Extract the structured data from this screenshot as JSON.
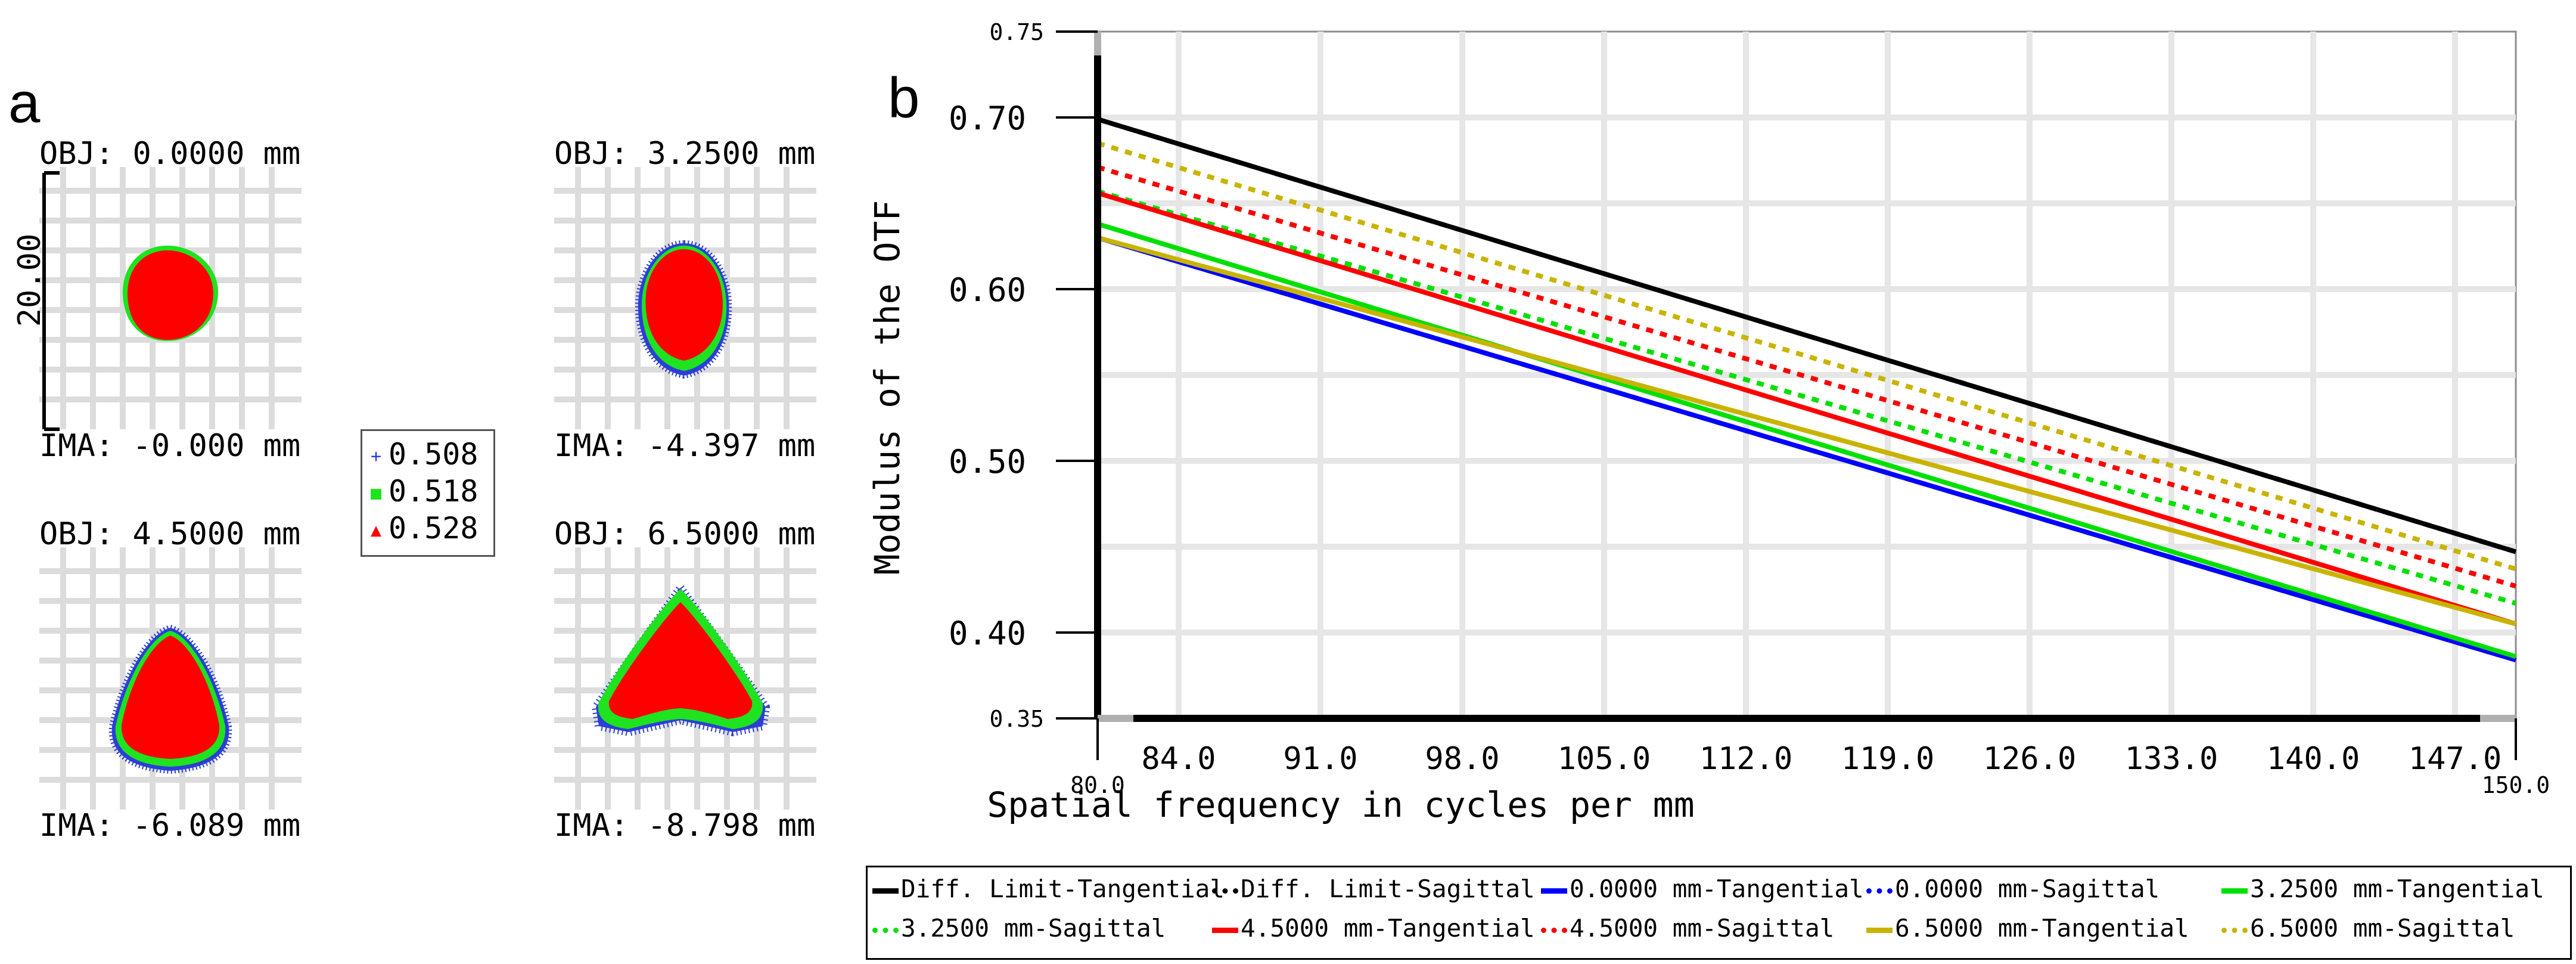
{
  "spot_panel": {
    "letter": "a",
    "fields": [
      {
        "obj": "OBJ: 0.0000 mm",
        "ima": "IMA: -0.000 mm"
      },
      {
        "obj": "OBJ: 3.2500 mm",
        "ima": "IMA: -4.397 mm"
      },
      {
        "obj": "OBJ: 4.5000 mm",
        "ima": "IMA: -6.089 mm"
      },
      {
        "obj": "OBJ: 6.5000 mm",
        "ima": "IMA: -8.798 mm"
      }
    ],
    "scale_label": "20.00",
    "wavelengths": [
      {
        "label": "0.508",
        "marker": "+",
        "color": "#2b3fd6"
      },
      {
        "label": "0.518",
        "marker": "■",
        "color": "#1ee31e"
      },
      {
        "label": "0.528",
        "marker": "▲",
        "color": "#ff0000"
      }
    ]
  },
  "chart_data": {
    "type": "line",
    "panel_letter": "b",
    "title": "",
    "xlabel": "Spatial frequency in cycles per mm",
    "ylabel": "Modulus of the OTF",
    "xlim": [
      80.0,
      150.0
    ],
    "ylim": [
      0.35,
      0.75
    ],
    "x_ticks": [
      "84.0",
      "91.0",
      "98.0",
      "105.0",
      "112.0",
      "119.0",
      "126.0",
      "133.0",
      "140.0",
      "147.0"
    ],
    "x_tick_values": [
      84,
      91,
      98,
      105,
      112,
      119,
      126,
      133,
      140,
      147
    ],
    "x_end_labels": [
      "80.0",
      "150.0"
    ],
    "y_ticks": [
      "0.75",
      "0.70",
      "0.60",
      "0.50",
      "0.40",
      "0.35"
    ],
    "y_tick_values": [
      0.75,
      0.7,
      0.6,
      0.5,
      0.4,
      0.35
    ],
    "x": [
      80,
      150
    ],
    "series": [
      {
        "name": "Diff. Limit-Tangential",
        "color": "#000000",
        "dash": "solid",
        "values": [
          0.699,
          0.447
        ]
      },
      {
        "name": "Diff. Limit-Sagittal",
        "color": "#000000",
        "dash": "dotted",
        "values": [
          0.699,
          0.447
        ]
      },
      {
        "name": "0.0000 mm-Tangential",
        "color": "#0000ff",
        "dash": "solid",
        "values": [
          0.63,
          0.384
        ]
      },
      {
        "name": "0.0000 mm-Sagittal",
        "color": "#0000ff",
        "dash": "dotted",
        "values": [
          0.63,
          0.384
        ]
      },
      {
        "name": "3.2500 mm-Tangential",
        "color": "#00e000",
        "dash": "solid",
        "values": [
          0.638,
          0.386
        ]
      },
      {
        "name": "3.2500 mm-Sagittal",
        "color": "#00e000",
        "dash": "dotted",
        "values": [
          0.657,
          0.417
        ]
      },
      {
        "name": "4.5000 mm-Tangential",
        "color": "#ff0000",
        "dash": "solid",
        "values": [
          0.656,
          0.405
        ]
      },
      {
        "name": "4.5000 mm-Sagittal",
        "color": "#ff0000",
        "dash": "dotted",
        "values": [
          0.671,
          0.427
        ]
      },
      {
        "name": "6.5000 mm-Tangential",
        "color": "#c8b400",
        "dash": "solid",
        "values": [
          0.63,
          0.405
        ]
      },
      {
        "name": "6.5000 mm-Sagittal",
        "color": "#c8b400",
        "dash": "dotted",
        "values": [
          0.685,
          0.437
        ]
      }
    ],
    "legend_location": "bottom"
  }
}
